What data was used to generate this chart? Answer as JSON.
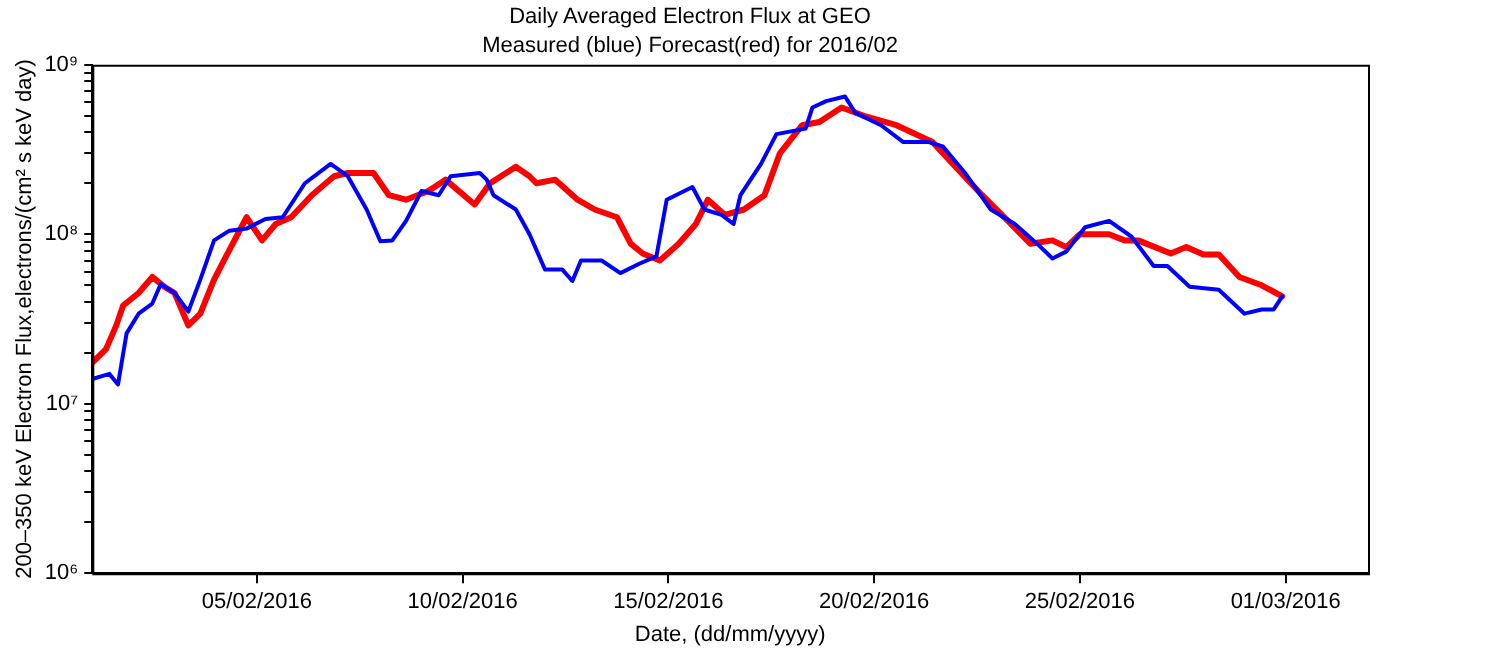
{
  "chart_data": {
    "type": "line",
    "title": "Daily Averaged Electron Flux at GEO",
    "subtitle": "Measured (blue) Forecast(red) for 2016/02",
    "xlabel": "Date, (dd/mm/yyyy)",
    "ylabel": "200–350 keV Electron Flux,electrons/(cm² s keV day)",
    "log": "y",
    "grid": false,
    "legend": false,
    "line_style": "solid",
    "xlim": [
      "2016-02-01",
      "2016-03-03"
    ],
    "xticks": [
      {
        "value": "2016-02-05",
        "label": "05/02/2016"
      },
      {
        "value": "2016-02-10",
        "label": "10/02/2016"
      },
      {
        "value": "2016-02-15",
        "label": "15/02/2016"
      },
      {
        "value": "2016-02-20",
        "label": "20/02/2016"
      },
      {
        "value": "2016-02-25",
        "label": "25/02/2016"
      },
      {
        "value": "2016-03-01",
        "label": "01/03/2016"
      }
    ],
    "ylim": [
      1000000,
      1000000000
    ],
    "yticks": [
      {
        "value": 1000000,
        "label": "10⁶"
      },
      {
        "value": 2000000,
        "label": null
      },
      {
        "value": 3000000,
        "label": null
      },
      {
        "value": 4000000,
        "label": null
      },
      {
        "value": 5000000,
        "label": null
      },
      {
        "value": 6000000,
        "label": null
      },
      {
        "value": 7000000,
        "label": null
      },
      {
        "value": 8000000,
        "label": null
      },
      {
        "value": 9000000,
        "label": null
      },
      {
        "value": 10000000,
        "label": "10⁷"
      },
      {
        "value": 20000000,
        "label": null
      },
      {
        "value": 30000000,
        "label": null
      },
      {
        "value": 40000000,
        "label": null
      },
      {
        "value": 50000000,
        "label": null
      },
      {
        "value": 60000000,
        "label": null
      },
      {
        "value": 70000000,
        "label": null
      },
      {
        "value": 80000000,
        "label": null
      },
      {
        "value": 90000000,
        "label": null
      },
      {
        "value": 100000000,
        "label": "10⁸"
      },
      {
        "value": 200000000,
        "label": null
      },
      {
        "value": 300000000,
        "label": null
      },
      {
        "value": 400000000,
        "label": null
      },
      {
        "value": 500000000,
        "label": null
      },
      {
        "value": 600000000,
        "label": null
      },
      {
        "value": 700000000,
        "label": null
      },
      {
        "value": 800000000,
        "label": null
      },
      {
        "value": 900000000,
        "label": null
      },
      {
        "value": 1000000000,
        "label": "10⁹"
      }
    ],
    "series": [
      {
        "color": "#0000ff",
        "x": [
          "2016-02-01T00:00",
          "2016-02-01T10:00",
          "2016-02-01T15:00",
          "2016-02-01T20:00",
          "2016-02-02T03:00",
          "2016-02-02T11:00",
          "2016-02-02T16:00",
          "2016-02-03T00:00",
          "2016-02-03T08:00",
          "2016-02-03T15:00",
          "2016-02-03T23:00",
          "2016-02-04T08:00",
          "2016-02-04T18:00",
          "2016-02-05T05:00",
          "2016-02-05T15:00",
          "2016-02-06T04:00",
          "2016-02-06T19:00",
          "2016-02-07T05:00",
          "2016-02-07T16:00",
          "2016-02-08T00:00",
          "2016-02-08T07:00",
          "2016-02-08T15:00",
          "2016-02-09T00:00",
          "2016-02-09T10:00",
          "2016-02-09T17:00",
          "2016-02-10T10:00",
          "2016-02-10T14:00",
          "2016-02-10T18:00",
          "2016-02-11T07:00",
          "2016-02-11T15:00",
          "2016-02-12T00:00",
          "2016-02-12T10:00",
          "2016-02-12T16:00",
          "2016-02-12T21:00",
          "2016-02-13T09:00",
          "2016-02-13T20:00",
          "2016-02-14T07:00",
          "2016-02-14T17:00",
          "2016-02-14T23:00",
          "2016-02-15T14:00",
          "2016-02-15T21:00",
          "2016-02-16T07:00",
          "2016-02-16T14:00",
          "2016-02-16T18:00",
          "2016-02-17T06:00",
          "2016-02-17T15:00",
          "2016-02-18T08:00",
          "2016-02-18T12:00",
          "2016-02-18T20:00",
          "2016-02-19T07:00",
          "2016-02-19T13:00",
          "2016-02-20T04:00",
          "2016-02-20T17:00",
          "2016-02-21T08:00",
          "2016-02-21T16:00",
          "2016-02-22T05:00",
          "2016-02-22T20:00",
          "2016-02-23T10:00",
          "2016-02-23T23:00",
          "2016-02-24T08:00",
          "2016-02-24T16:00",
          "2016-02-25T03:00",
          "2016-02-25T17:00",
          "2016-02-26T06:00",
          "2016-02-26T19:00",
          "2016-02-27T03:00",
          "2016-02-27T16:00",
          "2016-02-28T09:00",
          "2016-02-29T00:00",
          "2016-02-29T10:00",
          "2016-02-29T17:00",
          "2016-02-29T22:00"
        ],
        "values": [
          14000000,
          15000000,
          13000000,
          26000000,
          34000000,
          39000000,
          51000000,
          45000000,
          35000000,
          54000000,
          92000000,
          105000000,
          108000000,
          123000000,
          126000000,
          200000000,
          260000000,
          220000000,
          140000000,
          91000000,
          92000000,
          120000000,
          180000000,
          170000000,
          220000000,
          230000000,
          210000000,
          170000000,
          140000000,
          100000000,
          62000000,
          62000000,
          53000000,
          70000000,
          70000000,
          59000000,
          67000000,
          74000000,
          160000000,
          190000000,
          140000000,
          130000000,
          115000000,
          170000000,
          260000000,
          390000000,
          420000000,
          560000000,
          610000000,
          650000000,
          520000000,
          440000000,
          350000000,
          350000000,
          330000000,
          230000000,
          140000000,
          115000000,
          88000000,
          72000000,
          79000000,
          110000000,
          120000000,
          97000000,
          65000000,
          65000000,
          49000000,
          47000000,
          34000000,
          36000000,
          36000000,
          43000000
        ]
      },
      {
        "color": "#ff0000",
        "x": [
          "2016-02-01T00:00",
          "2016-02-01T08:00",
          "2016-02-01T14:00",
          "2016-02-01T18:00",
          "2016-02-02T03:00",
          "2016-02-02T11:00",
          "2016-02-02T18:00",
          "2016-02-03T00:00",
          "2016-02-03T08:00",
          "2016-02-03T15:00",
          "2016-02-03T23:00",
          "2016-02-04T08:00",
          "2016-02-04T18:00",
          "2016-02-05T03:00",
          "2016-02-05T11:00",
          "2016-02-05T20:00",
          "2016-02-06T08:00",
          "2016-02-06T21:00",
          "2016-02-07T05:00",
          "2016-02-07T20:00",
          "2016-02-08T05:00",
          "2016-02-08T15:00",
          "2016-02-09T04:00",
          "2016-02-09T14:00",
          "2016-02-10T07:00",
          "2016-02-10T16:00",
          "2016-02-11T07:00",
          "2016-02-11T15:00",
          "2016-02-11T19:00",
          "2016-02-12T06:00",
          "2016-02-12T19:00",
          "2016-02-13T05:00",
          "2016-02-13T18:00",
          "2016-02-14T02:00",
          "2016-02-14T09:00",
          "2016-02-14T19:00",
          "2016-02-15T06:00",
          "2016-02-15T16:00",
          "2016-02-15T23:00",
          "2016-02-16T09:00",
          "2016-02-16T20:00",
          "2016-02-17T08:00",
          "2016-02-17T17:00",
          "2016-02-18T06:00",
          "2016-02-18T16:00",
          "2016-02-19T05:00",
          "2016-02-19T18:00",
          "2016-02-20T13:00",
          "2016-02-21T10:00",
          "2016-02-22T01:00",
          "2016-02-22T15:00",
          "2016-02-23T06:00",
          "2016-02-23T19:00",
          "2016-02-24T08:00",
          "2016-02-24T16:00",
          "2016-02-25T00:00",
          "2016-02-25T17:00",
          "2016-02-26T02:00",
          "2016-02-26T10:00",
          "2016-02-27T05:00",
          "2016-02-27T14:00",
          "2016-02-28T00:00",
          "2016-02-28T09:00",
          "2016-02-28T21:00",
          "2016-02-29T10:00",
          "2016-02-29T22:00"
        ],
        "values": [
          17500000,
          21000000,
          29000000,
          38000000,
          45000000,
          56000000,
          49000000,
          45000000,
          29000000,
          34000000,
          54000000,
          81000000,
          126000000,
          92000000,
          115000000,
          126000000,
          170000000,
          220000000,
          230000000,
          230000000,
          170000000,
          160000000,
          180000000,
          210000000,
          150000000,
          200000000,
          250000000,
          220000000,
          200000000,
          210000000,
          160000000,
          140000000,
          126000000,
          88000000,
          77000000,
          70000000,
          88000000,
          115000000,
          160000000,
          130000000,
          140000000,
          170000000,
          300000000,
          440000000,
          460000000,
          560000000,
          500000000,
          440000000,
          350000000,
          240000000,
          170000000,
          120000000,
          88000000,
          92000000,
          84000000,
          100000000,
          100000000,
          92000000,
          92000000,
          77000000,
          84000000,
          76000000,
          76000000,
          56000000,
          50000000,
          43000000
        ]
      }
    ]
  }
}
